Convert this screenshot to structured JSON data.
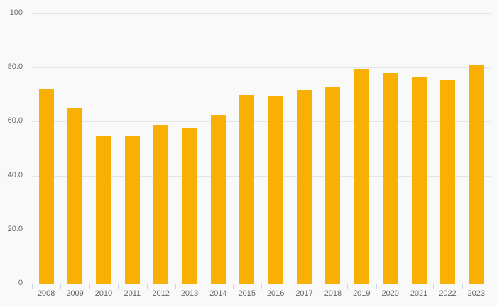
{
  "chart_data": {
    "type": "bar",
    "title": "",
    "xlabel": "",
    "ylabel": "",
    "categories": [
      "2008",
      "2009",
      "2010",
      "2011",
      "2012",
      "2013",
      "2014",
      "2015",
      "2016",
      "2017",
      "2018",
      "2019",
      "2020",
      "2021",
      "2022",
      "2023"
    ],
    "values": [
      72.2,
      64.9,
      54.6,
      54.6,
      58.4,
      57.8,
      62.4,
      69.8,
      69.4,
      71.6,
      72.8,
      79.3,
      78.0,
      76.7,
      75.2,
      81.2
    ],
    "ylim": [
      0,
      100
    ],
    "yticks": [
      {
        "value": 0,
        "label": "0"
      },
      {
        "value": 20,
        "label": "20.0"
      },
      {
        "value": 40,
        "label": "40.0"
      },
      {
        "value": 60,
        "label": "60.0"
      },
      {
        "value": 80,
        "label": "80.0"
      },
      {
        "value": 100,
        "label": "100"
      }
    ],
    "grid": true,
    "legend": false,
    "tick_placement": "between"
  },
  "colors": {
    "background": "#f9f9f9",
    "bar": "#f9b005",
    "gridline": "#e4e4e4",
    "axis_line": "#ccd6eb",
    "label": "#666666"
  }
}
